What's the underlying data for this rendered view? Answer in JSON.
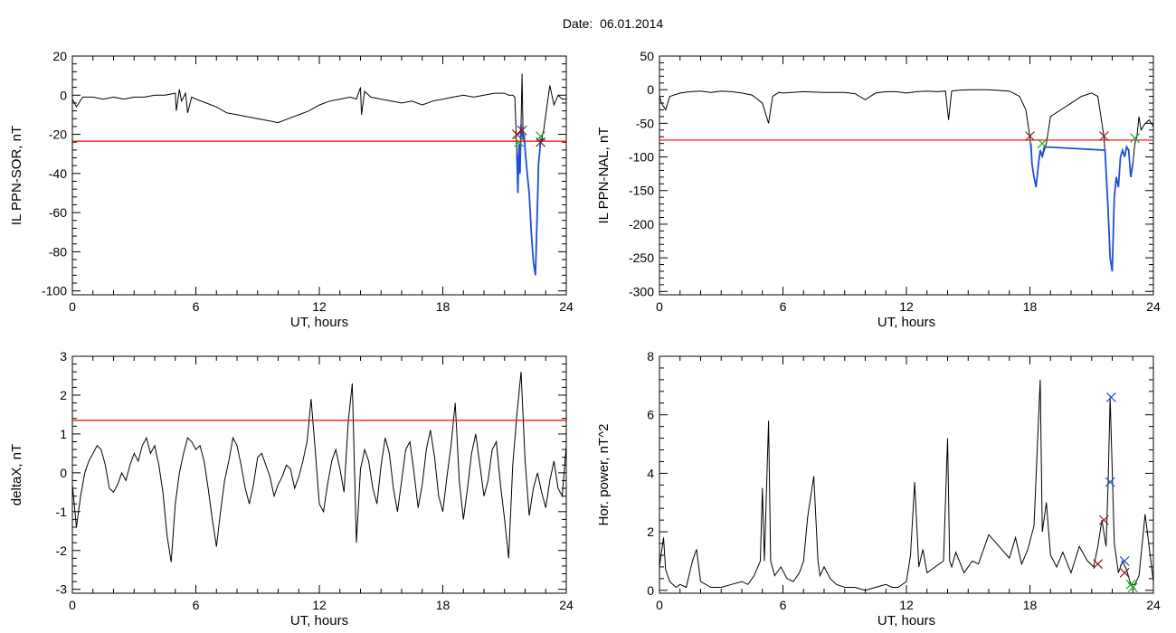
{
  "header": {
    "date_label": "Date:",
    "date_value": "06.01.2014"
  },
  "colors": {
    "threshold": "#ff0000",
    "curve": "#000000",
    "storm": "#1f4fd8",
    "onset_marker": "#8b1a1a",
    "end_marker": "#22aa22",
    "peak_marker": "#1f4fd8"
  },
  "chart_data": [
    {
      "id": "p1",
      "type": "line",
      "xlabel": "UT, hours",
      "ylabel": "IL PPN-SOR, nT",
      "xlim": [
        0,
        24
      ],
      "ylim": [
        -102,
        20
      ],
      "xticks": [
        0,
        6,
        12,
        18,
        24
      ],
      "yticks": [
        20,
        0,
        -20,
        -40,
        -60,
        -80,
        -100
      ],
      "threshold": -23.5,
      "series": [
        {
          "role": "main",
          "color": "#000000",
          "x": [
            0,
            0.2,
            0.5,
            1,
            1.5,
            2,
            2.5,
            3,
            3.5,
            4,
            4.5,
            5,
            5.05,
            5.2,
            5.3,
            5.5,
            5.6,
            5.8,
            6,
            6.5,
            7,
            7.5,
            8,
            8.5,
            9,
            9.5,
            10,
            10.5,
            11,
            11.5,
            12,
            12.5,
            13,
            13.5,
            13.8,
            14,
            14.05,
            14.2,
            14.5,
            15,
            15.5,
            16,
            16.5,
            17,
            17.5,
            18,
            18.5,
            19,
            19.5,
            20,
            20.5,
            21,
            21.2,
            21.4,
            21.5,
            21.6,
            21.65,
            21.7,
            21.75,
            21.8,
            21.85,
            21.9,
            21.95,
            22,
            22.1,
            22.2,
            22.3,
            22.4,
            22.5,
            22.6,
            22.65,
            22.7,
            22.75,
            22.8,
            22.85,
            22.9,
            23,
            23.2,
            23.4,
            23.6,
            23.8,
            24
          ],
          "y": [
            -2,
            -6,
            -1,
            -1,
            -2,
            -1,
            -2,
            -1,
            -1,
            0,
            0,
            1,
            -8,
            3,
            -3,
            1,
            -9,
            -1,
            -2,
            -4,
            -6,
            -9,
            -10,
            -11,
            -12,
            -13,
            -14,
            -12,
            -10,
            -8,
            -5,
            -3,
            -2,
            -1,
            -2,
            4,
            -10,
            2,
            -1,
            -2,
            -3,
            -4,
            -3,
            -5,
            -3,
            -2,
            -1,
            0,
            -1,
            0,
            1,
            1,
            0,
            0,
            -1,
            -30,
            -50,
            -25,
            -40,
            -15,
            11,
            -20,
            -22,
            -28,
            -40,
            -50,
            -70,
            -85,
            -92,
            -55,
            -35,
            -30,
            -22,
            -24,
            -20,
            -18,
            -10,
            5,
            -5,
            0,
            -2,
            -2
          ]
        },
        {
          "role": "storm",
          "color": "#1f4fd8",
          "x": [
            21.6,
            21.65,
            21.7,
            21.75,
            21.8,
            21.85,
            21.9,
            21.95,
            22,
            22.1,
            22.2,
            22.3,
            22.4,
            22.5,
            22.6,
            22.65,
            22.7,
            22.75,
            22.8
          ],
          "y": [
            -30,
            -50,
            -25,
            -40,
            -15,
            -20,
            -22,
            -20,
            -28,
            -40,
            -50,
            -70,
            -85,
            -92,
            -55,
            -35,
            -30,
            -22,
            -24
          ]
        }
      ],
      "markers": [
        {
          "x": 21.6,
          "y": -20,
          "color": "#8b1a1a"
        },
        {
          "x": 21.85,
          "y": -18,
          "color": "#8b1a1a"
        },
        {
          "x": 21.7,
          "y": -24,
          "color": "#22aa22"
        },
        {
          "x": 22.75,
          "y": -21,
          "color": "#22aa22"
        },
        {
          "x": 22.75,
          "y": -24,
          "color": "#8b1a1a"
        }
      ]
    },
    {
      "id": "p2",
      "type": "line",
      "xlabel": "UT, hours",
      "ylabel": "IL PPN-NAL, nT",
      "xlim": [
        0,
        24
      ],
      "ylim": [
        -305,
        50
      ],
      "xticks": [
        0,
        6,
        12,
        18,
        24
      ],
      "yticks": [
        50,
        0,
        -50,
        -100,
        -150,
        -200,
        -250,
        -300
      ],
      "threshold": -75,
      "series": [
        {
          "role": "main",
          "color": "#000000",
          "x": [
            0,
            0.1,
            0.3,
            0.5,
            1,
            1.5,
            2,
            2.5,
            3,
            3.5,
            4,
            4.5,
            5,
            5.3,
            5.5,
            5.8,
            6,
            7,
            8,
            9,
            9.5,
            10,
            10.5,
            11,
            11.5,
            12,
            12.5,
            13,
            13.5,
            13.9,
            14.05,
            14.2,
            14.5,
            15,
            16,
            17,
            17.5,
            17.8,
            18,
            18.1,
            18.2,
            18.3,
            18.4,
            18.5,
            18.6,
            18.8,
            19,
            19.5,
            20,
            20.5,
            21,
            21.3,
            21.5,
            21.6,
            21.7,
            21.8,
            21.9,
            22,
            22.1,
            22.2,
            22.3,
            22.4,
            22.5,
            22.6,
            22.7,
            22.8,
            22.9,
            23,
            23.1,
            23.2,
            23.3,
            23.4,
            23.6,
            23.8,
            24
          ],
          "y": [
            -10,
            -20,
            -30,
            -10,
            -5,
            -3,
            -2,
            -4,
            -2,
            -3,
            -5,
            -8,
            -20,
            -50,
            -10,
            -4,
            -5,
            -3,
            -4,
            -4,
            -6,
            -15,
            -5,
            -3,
            -3,
            -5,
            -3,
            -2,
            -3,
            -2,
            -45,
            -2,
            -1,
            0,
            0,
            -2,
            -10,
            -30,
            -70,
            -110,
            -130,
            -145,
            -115,
            -90,
            -100,
            -80,
            -40,
            -30,
            -20,
            -10,
            -5,
            -10,
            -50,
            -70,
            -120,
            -180,
            -250,
            -270,
            -160,
            -130,
            -145,
            -100,
            -90,
            -100,
            -85,
            -90,
            -130,
            -110,
            -80,
            -70,
            -40,
            -60,
            -50,
            -45,
            -55
          ]
        },
        {
          "role": "storm",
          "color": "#1f4fd8",
          "x": [
            18.05,
            18.1,
            18.2,
            18.3,
            18.4,
            18.5,
            18.6,
            18.7,
            21.65,
            21.7,
            21.8,
            21.9,
            22,
            22.1,
            22.2,
            22.3,
            22.4,
            22.5,
            22.6,
            22.7,
            22.8,
            22.9,
            23
          ],
          "y": [
            -80,
            -110,
            -130,
            -145,
            -115,
            -90,
            -100,
            -85,
            -90,
            -120,
            -180,
            -250,
            -270,
            -160,
            -130,
            -145,
            -100,
            -90,
            -100,
            -85,
            -90,
            -130,
            -110
          ]
        }
      ],
      "markers": [
        {
          "x": 18.0,
          "y": -69,
          "color": "#8b1a1a"
        },
        {
          "x": 18.6,
          "y": -80,
          "color": "#22aa22"
        },
        {
          "x": 21.6,
          "y": -69,
          "color": "#8b1a1a"
        },
        {
          "x": 23.1,
          "y": -72,
          "color": "#22aa22"
        }
      ]
    },
    {
      "id": "p3",
      "type": "line",
      "xlabel": "UT, hours",
      "ylabel": "deltaX, nT",
      "xlim": [
        0,
        24
      ],
      "ylim": [
        -3.1,
        3
      ],
      "xticks": [
        0,
        6,
        12,
        18,
        24
      ],
      "yticks": [
        3,
        2,
        1,
        0,
        -1,
        -2,
        -3
      ],
      "threshold": 1.35,
      "series": [
        {
          "role": "main",
          "color": "#000000",
          "x": [
            0,
            0.2,
            0.4,
            0.6,
            0.8,
            1,
            1.2,
            1.4,
            1.6,
            1.8,
            2,
            2.2,
            2.4,
            2.6,
            2.8,
            3,
            3.2,
            3.4,
            3.6,
            3.8,
            4,
            4.2,
            4.4,
            4.6,
            4.8,
            5,
            5.2,
            5.4,
            5.6,
            5.8,
            6,
            6.2,
            6.4,
            6.6,
            6.8,
            7,
            7.2,
            7.4,
            7.6,
            7.8,
            8,
            8.2,
            8.4,
            8.6,
            8.8,
            9,
            9.2,
            9.4,
            9.6,
            9.8,
            10,
            10.2,
            10.4,
            10.6,
            10.8,
            11,
            11.2,
            11.4,
            11.6,
            11.8,
            12,
            12.2,
            12.4,
            12.6,
            12.8,
            13,
            13.2,
            13.4,
            13.6,
            13.8,
            14,
            14.2,
            14.4,
            14.6,
            14.8,
            15,
            15.2,
            15.4,
            15.6,
            15.8,
            16,
            16.2,
            16.4,
            16.6,
            16.8,
            17,
            17.2,
            17.4,
            17.6,
            17.8,
            18,
            18.2,
            18.4,
            18.6,
            18.8,
            19,
            19.2,
            19.4,
            19.6,
            19.8,
            20,
            20.2,
            20.4,
            20.6,
            20.8,
            21,
            21.2,
            21.4,
            21.6,
            21.8,
            22,
            22.2,
            22.4,
            22.6,
            22.8,
            23,
            23.2,
            23.4,
            23.6,
            23.8,
            24
          ],
          "y": [
            -0.3,
            -1.4,
            -0.6,
            0.0,
            0.3,
            0.5,
            0.7,
            0.6,
            0.2,
            -0.4,
            -0.5,
            -0.3,
            0.0,
            -0.2,
            0.2,
            0.5,
            0.3,
            0.7,
            0.9,
            0.5,
            0.7,
            0.2,
            -0.5,
            -1.6,
            -2.3,
            -0.8,
            0.0,
            0.5,
            0.9,
            0.8,
            0.6,
            0.7,
            0.3,
            -0.4,
            -1.2,
            -1.9,
            -1.0,
            -0.2,
            0.3,
            0.9,
            0.7,
            0.2,
            -0.4,
            -0.8,
            -0.3,
            0.4,
            0.5,
            0.2,
            -0.1,
            -0.6,
            -0.3,
            -0.1,
            0.2,
            0.1,
            -0.4,
            -0.1,
            0.3,
            0.8,
            1.9,
            0.6,
            -0.8,
            -1.0,
            -0.3,
            0.3,
            0.6,
            0.1,
            -0.5,
            1.3,
            2.3,
            -1.8,
            0.1,
            0.6,
            0.3,
            -0.4,
            -0.8,
            0.2,
            0.9,
            0.5,
            -0.4,
            -1.0,
            -0.2,
            0.6,
            0.8,
            0.0,
            -0.9,
            -0.3,
            0.6,
            1.1,
            0.4,
            -0.6,
            -1.0,
            -0.1,
            0.7,
            1.8,
            -0.2,
            -1.2,
            -0.4,
            0.5,
            1.0,
            0.2,
            -0.6,
            -0.2,
            0.6,
            0.8,
            -0.3,
            -1.2,
            -2.2,
            0.2,
            1.5,
            2.6,
            0.3,
            -1.1,
            -0.4,
            0.0,
            -0.5,
            -0.9,
            -0.2,
            0.3,
            -0.4,
            -0.6,
            0.7
          ]
        }
      ],
      "markers": []
    },
    {
      "id": "p4",
      "type": "line",
      "xlabel": "UT, hours",
      "ylabel": "Hor. power, nT^2",
      "xlim": [
        0,
        24
      ],
      "ylim": [
        -0.1,
        8
      ],
      "xticks": [
        0,
        6,
        12,
        18,
        24
      ],
      "yticks": [
        8,
        6,
        4,
        2,
        0
      ],
      "threshold": null,
      "series": [
        {
          "role": "main",
          "color": "#000000",
          "x": [
            0,
            0.2,
            0.3,
            0.5,
            0.8,
            1,
            1.3,
            1.6,
            1.8,
            2,
            2.5,
            3,
            3.5,
            4,
            4.3,
            4.6,
            4.9,
            5,
            5.1,
            5.3,
            5.4,
            5.6,
            5.9,
            6.2,
            6.5,
            6.8,
            7,
            7.2,
            7.5,
            7.7,
            7.8,
            8,
            8.3,
            8.6,
            9,
            9.5,
            10,
            10.5,
            11,
            11.3,
            11.6,
            12,
            12.2,
            12.4,
            12.6,
            12.8,
            13,
            13.4,
            13.8,
            14,
            14.1,
            14.2,
            14.4,
            14.8,
            15.2,
            15.5,
            16,
            16.5,
            17,
            17.3,
            17.6,
            17.9,
            18.2,
            18.5,
            18.6,
            18.8,
            19,
            19.3,
            19.6,
            20,
            20.4,
            20.8,
            21.1,
            21.3,
            21.5,
            21.7,
            21.8,
            21.9,
            22.1,
            22.3,
            22.5,
            22.7,
            22.9,
            23.1,
            23.3,
            23.6,
            24
          ],
          "y": [
            0.8,
            1.8,
            0.7,
            0.3,
            0.1,
            0.2,
            0.1,
            1.0,
            1.4,
            0.3,
            0.1,
            0.1,
            0.2,
            0.3,
            0.2,
            0.5,
            1.0,
            3.5,
            1.0,
            5.8,
            1.0,
            0.5,
            0.8,
            0.4,
            0.3,
            0.6,
            1.0,
            2.5,
            3.9,
            1.0,
            0.5,
            0.8,
            0.4,
            0.2,
            0.1,
            0.1,
            0.0,
            0.1,
            0.2,
            0.1,
            0.1,
            0.3,
            1.2,
            3.7,
            0.8,
            1.4,
            0.6,
            0.8,
            1.0,
            5.2,
            1.0,
            0.8,
            1.3,
            0.6,
            1.0,
            0.9,
            1.9,
            1.5,
            1.1,
            1.8,
            0.9,
            1.4,
            2.2,
            7.2,
            2.0,
            3.0,
            1.2,
            0.8,
            1.3,
            0.6,
            1.5,
            1.0,
            0.8,
            1.5,
            2.4,
            1.5,
            3.7,
            6.6,
            1.6,
            0.6,
            1.0,
            0.7,
            0.2,
            0.2,
            0.5,
            2.6,
            0.3
          ]
        }
      ],
      "markers": [
        {
          "x": 21.3,
          "y": 0.9,
          "color": "#8b1a1a"
        },
        {
          "x": 21.6,
          "y": 2.4,
          "color": "#8b1a1a"
        },
        {
          "x": 21.9,
          "y": 3.7,
          "color": "#1f4fd8"
        },
        {
          "x": 21.95,
          "y": 6.6,
          "color": "#1f4fd8"
        },
        {
          "x": 22.6,
          "y": 1.0,
          "color": "#1f4fd8"
        },
        {
          "x": 22.6,
          "y": 0.6,
          "color": "#8b1a1a"
        },
        {
          "x": 22.9,
          "y": 0.2,
          "color": "#22aa22"
        },
        {
          "x": 23.0,
          "y": 0.1,
          "color": "#22aa22"
        }
      ]
    }
  ]
}
